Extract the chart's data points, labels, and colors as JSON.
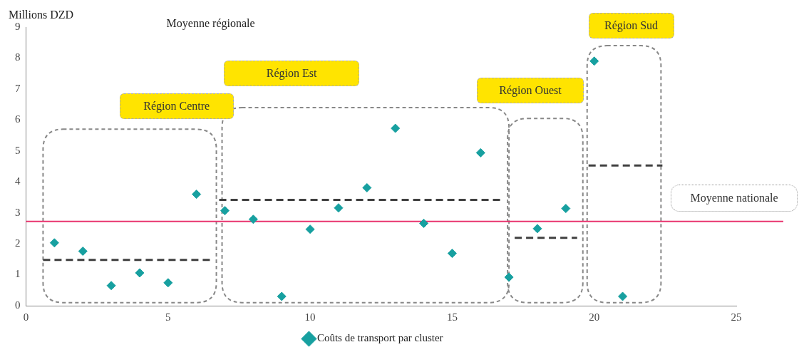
{
  "chart_data": {
    "type": "scatter",
    "ylabel": "Millions DZD",
    "marker": "diamond",
    "legend": "bottom",
    "grid": false,
    "xlim": [
      0,
      25
    ],
    "xticks": [
      0,
      5,
      10,
      15,
      20,
      25
    ],
    "ylim": [
      0,
      9
    ],
    "yticks": [
      0,
      1,
      2,
      3,
      4,
      5,
      6,
      7,
      8,
      9
    ],
    "series": [
      {
        "name": "Coûts de transport par cluster",
        "color": "#17a0a0",
        "x": [
          1,
          2,
          3,
          4,
          5,
          6,
          7,
          8,
          9,
          10,
          11,
          12,
          13,
          14,
          15,
          16,
          17,
          18,
          19,
          20,
          21
        ],
        "values": [
          2.03,
          1.76,
          0.65,
          1.06,
          0.74,
          3.6,
          3.07,
          2.79,
          0.3,
          2.47,
          3.16,
          3.81,
          5.73,
          2.66,
          1.69,
          4.94,
          0.92,
          2.49,
          3.14,
          7.9,
          0.3
        ]
      },
      {
        "type": "line",
        "color": "#404040",
        "line_style": "dashed",
        "marker": "none",
        "x": [
          0.6,
          6.6
        ],
        "values": [
          1.48,
          1.48
        ]
      },
      {
        "type": "line",
        "color": "#404040",
        "line_style": "dashed",
        "marker": "none",
        "x": [
          6.8,
          16.7
        ],
        "values": [
          3.42,
          3.42
        ]
      },
      {
        "type": "line",
        "color": "#404040",
        "line_style": "dashed",
        "marker": "none",
        "x": [
          17.2,
          19.4
        ],
        "values": [
          2.19,
          2.19
        ]
      },
      {
        "type": "line",
        "color": "#404040",
        "line_style": "dashed",
        "marker": "none",
        "x": [
          19.8,
          22.4
        ],
        "values": [
          4.53,
          4.53
        ]
      }
    ],
    "ref_lines": [
      {
        "axis": "y",
        "value": 2.72,
        "label": "Moyenne nationale",
        "color": "#e8336e"
      }
    ],
    "annotations": [
      "Moyenne régionale",
      "Région Centre",
      "Région Est",
      "Région Ouest",
      "Région Sud"
    ]
  }
}
